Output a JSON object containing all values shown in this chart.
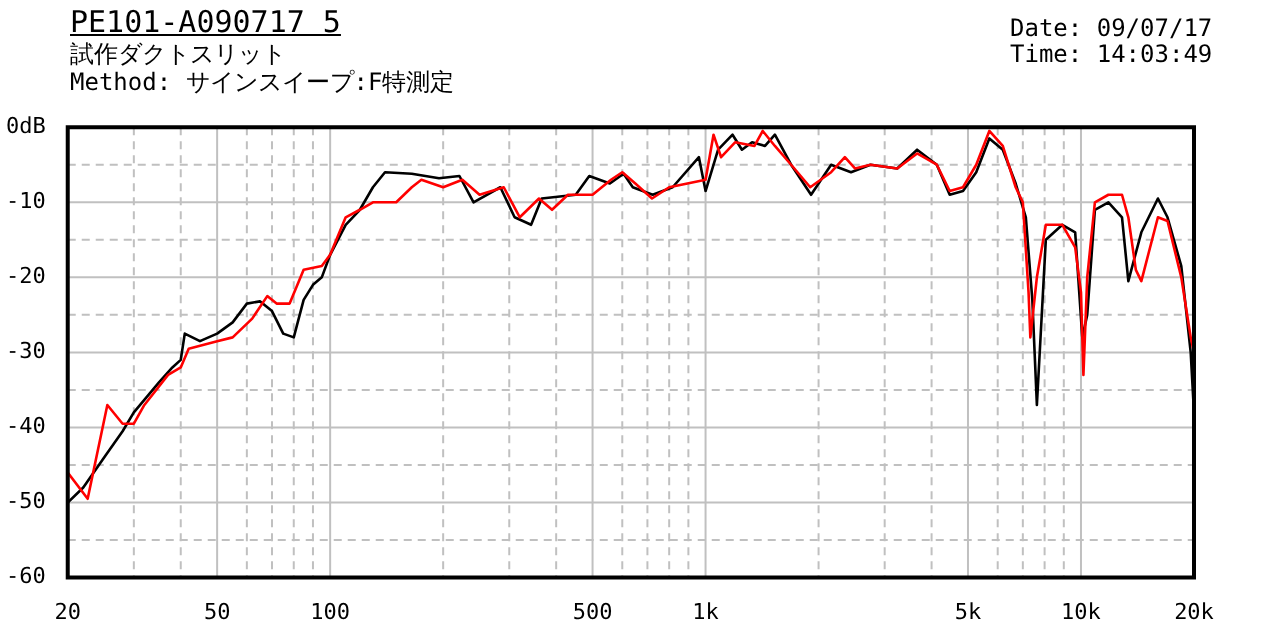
{
  "chart_data": {
    "type": "line",
    "title": "PE101-A090717 5",
    "subtitle": "試作ダクトスリット",
    "annotations": [
      "Method: サインスイープ:F特測定",
      "Date: 09/07/17",
      "Time: 14:03:49"
    ],
    "log": "x",
    "grid": true,
    "legend": false,
    "marker": "none",
    "line_style": "solid",
    "xlim": [
      20,
      20000
    ],
    "xticks": [
      20,
      {
        "value": 30,
        "label": null
      },
      {
        "value": 40,
        "label": null
      },
      50,
      {
        "value": 60,
        "label": null
      },
      {
        "value": 70,
        "label": null
      },
      {
        "value": 80,
        "label": null
      },
      {
        "value": 90,
        "label": null
      },
      100,
      {
        "value": 200,
        "label": null
      },
      {
        "value": 300,
        "label": null
      },
      {
        "value": 400,
        "label": null
      },
      500,
      {
        "value": 600,
        "label": null
      },
      {
        "value": 700,
        "label": null
      },
      {
        "value": 800,
        "label": null
      },
      {
        "value": 900,
        "label": null
      },
      {
        "value": 1000,
        "label": "1k"
      },
      {
        "value": 2000,
        "label": null
      },
      {
        "value": 3000,
        "label": null
      },
      {
        "value": 4000,
        "label": null
      },
      {
        "value": 5000,
        "label": "5k"
      },
      {
        "value": 6000,
        "label": null
      },
      {
        "value": 7000,
        "label": null
      },
      {
        "value": 8000,
        "label": null
      },
      {
        "value": 9000,
        "label": null
      },
      {
        "value": 10000,
        "label": "10k"
      },
      {
        "value": 20000,
        "label": "20k"
      }
    ],
    "ylim": [
      -60,
      0
    ],
    "yticks": [
      -60,
      {
        "value": -55,
        "label": null
      },
      -50,
      {
        "value": -45,
        "label": null
      },
      -40,
      {
        "value": -35,
        "label": null
      },
      -30,
      {
        "value": -25,
        "label": null
      },
      -20,
      {
        "value": -15,
        "label": null
      },
      -10,
      {
        "value": -5,
        "label": null
      },
      {
        "value": 0,
        "label": "0dB"
      }
    ],
    "series": [
      {
        "color": "#ff0000",
        "x": [
          20,
          22.6,
          25.5,
          28,
          30,
          32,
          37,
          40,
          42,
          50,
          55,
          62,
          68,
          72,
          78,
          85,
          95,
          100,
          110,
          120,
          130,
          150,
          165,
          175,
          200,
          225,
          250,
          290,
          320,
          360,
          390,
          430,
          500,
          560,
          600,
          650,
          720,
          800,
          1000,
          1050,
          1100,
          1200,
          1350,
          1420,
          1530,
          1690,
          1900,
          2160,
          2350,
          2500,
          2750,
          3240,
          3660,
          4130,
          4470,
          4850,
          5260,
          5700,
          6190,
          6700,
          7000,
          7250,
          7330,
          7630,
          8060,
          8920,
          9650,
          10000,
          10150,
          10390,
          10890,
          11830,
          12860,
          13370,
          14000,
          14480,
          16030,
          17000,
          18500,
          19600,
          20000
        ],
        "values": [
          -46,
          -49.5,
          -37,
          -39.5,
          -39.5,
          -37,
          -33,
          -32,
          -29.5,
          -28.5,
          -28,
          -25.5,
          -22.5,
          -23.5,
          -23.5,
          -19,
          -18.5,
          -17,
          -12,
          -11,
          -10,
          -10,
          -8,
          -7,
          -8,
          -7,
          -9,
          -8,
          -12,
          -9.5,
          -11,
          -9,
          -9,
          -7,
          -6,
          -7.5,
          -9.5,
          -8,
          -7,
          -1,
          -4,
          -2,
          -2.5,
          -0.5,
          -2.5,
          -5,
          -8,
          -6,
          -4,
          -5.5,
          -5,
          -5.5,
          -3.5,
          -5,
          -8.5,
          -8,
          -5,
          -0.5,
          -2.5,
          -8,
          -10,
          -22,
          -28,
          -20,
          -13,
          -13,
          -16,
          -22,
          -33,
          -20,
          -10,
          -9,
          -9,
          -12,
          -19,
          -20.5,
          -12,
          -12.5,
          -20,
          -28,
          -30
        ]
      },
      {
        "color": "#000000",
        "x": [
          20,
          22,
          25,
          28,
          30,
          35,
          38,
          40,
          41,
          45,
          50,
          55,
          60,
          65,
          70,
          75,
          80,
          85,
          90,
          95,
          100,
          110,
          120,
          130,
          140,
          165,
          195,
          221,
          241,
          284,
          310,
          343,
          366,
          451,
          490,
          556,
          605,
          640,
          723,
          817,
          960,
          1000,
          1080,
          1180,
          1250,
          1330,
          1440,
          1530,
          1690,
          1910,
          2160,
          2440,
          2750,
          3240,
          3660,
          4130,
          4470,
          4850,
          5260,
          5700,
          6190,
          6700,
          7130,
          7420,
          7630,
          8060,
          8920,
          9650,
          10080,
          10390,
          10890,
          11830,
          12860,
          13370,
          14480,
          16030,
          17000,
          18500,
          19600,
          20000
        ],
        "values": [
          -50,
          -48,
          -44,
          -40.5,
          -38,
          -34,
          -32,
          -31,
          -27.5,
          -28.5,
          -27.5,
          -26,
          -23.5,
          -23.2,
          -24.5,
          -27.5,
          -28,
          -23,
          -21,
          -20,
          -17,
          -13,
          -11,
          -8,
          -6,
          -6.2,
          -6.8,
          -6.5,
          -10,
          -8,
          -12,
          -13,
          -9.5,
          -9,
          -6.5,
          -7.5,
          -6.2,
          -8,
          -9,
          -8,
          -4,
          -8.5,
          -3,
          -1,
          -3,
          -2,
          -2.5,
          -1,
          -5,
          -9,
          -5,
          -6,
          -5,
          -5.5,
          -3,
          -5,
          -9,
          -8.5,
          -6,
          -1.5,
          -3,
          -7.5,
          -12,
          -23,
          -37,
          -15,
          -13,
          -14,
          -28,
          -25,
          -11,
          -10,
          -12,
          -20.5,
          -14,
          -9.5,
          -12,
          -18.5,
          -30,
          -38
        ]
      }
    ]
  }
}
